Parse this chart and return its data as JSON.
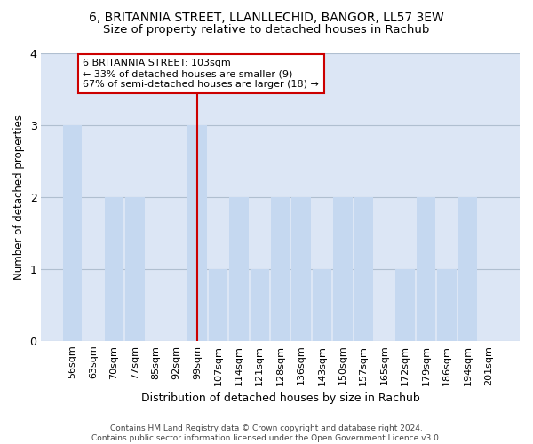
{
  "title": "6, BRITANNIA STREET, LLANLLECHID, BANGOR, LL57 3EW",
  "subtitle": "Size of property relative to detached houses in Rachub",
  "xlabel": "Distribution of detached houses by size in Rachub",
  "ylabel": "Number of detached properties",
  "categories": [
    "56sqm",
    "63sqm",
    "70sqm",
    "77sqm",
    "85sqm",
    "92sqm",
    "99sqm",
    "107sqm",
    "114sqm",
    "121sqm",
    "128sqm",
    "136sqm",
    "143sqm",
    "150sqm",
    "157sqm",
    "165sqm",
    "172sqm",
    "179sqm",
    "186sqm",
    "194sqm",
    "201sqm"
  ],
  "values": [
    3,
    0,
    2,
    2,
    0,
    0,
    3,
    1,
    2,
    1,
    2,
    2,
    1,
    2,
    2,
    0,
    1,
    2,
    1,
    2,
    0
  ],
  "bar_color": "#c5d8f0",
  "highlight_line_index": 6,
  "highlight_line_color": "#cc0000",
  "annotation_text": "6 BRITANNIA STREET: 103sqm\n← 33% of detached houses are smaller (9)\n67% of semi-detached houses are larger (18) →",
  "annotation_box_color": "white",
  "annotation_box_edge_color": "#cc0000",
  "ylim": [
    0,
    4
  ],
  "yticks": [
    0,
    1,
    2,
    3,
    4
  ],
  "plot_bg_color": "#dce6f5",
  "fig_bg_color": "white",
  "grid_color": "#b0bfd0",
  "footnote": "Contains HM Land Registry data © Crown copyright and database right 2024.\nContains public sector information licensed under the Open Government Licence v3.0.",
  "title_fontsize": 10,
  "subtitle_fontsize": 9.5,
  "xlabel_fontsize": 9,
  "ylabel_fontsize": 8.5,
  "tick_fontsize": 8,
  "annot_fontsize": 8,
  "footnote_fontsize": 6.5
}
